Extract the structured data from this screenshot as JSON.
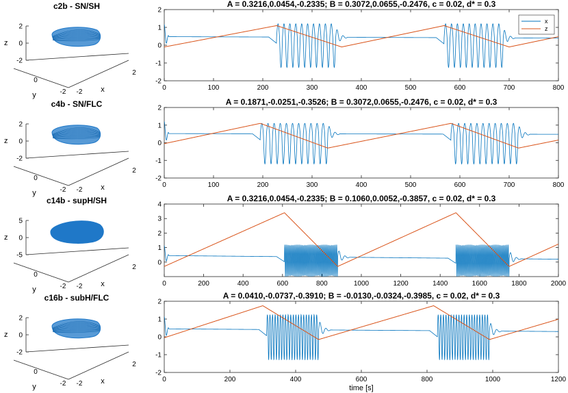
{
  "figure": {
    "xlabel": "time [s]"
  },
  "colors": {
    "x": "#0072bd",
    "z": "#d95319",
    "axis": "#262626",
    "blob": "#1f78c8"
  },
  "chart_data": [
    {
      "type": "line",
      "row": 0,
      "label_3d": "c2b - SN/SH",
      "title": "A = 0.3216,0.0454,-0.2335;  B = 0.3072,0.0655,-0.2476, c = 0.02, d* = 0.3",
      "xlim": [
        0,
        800
      ],
      "ylim": [
        -2,
        2
      ],
      "xticks": [
        0,
        100,
        200,
        300,
        400,
        500,
        600,
        700,
        800
      ],
      "yticks": [
        -2,
        -1,
        0,
        1,
        2
      ],
      "legend": [
        "x",
        "z"
      ],
      "z_wave": {
        "start": -0.1,
        "peak_t": 228,
        "peak": 1.1,
        "trough_t": 360,
        "trough": -0.1,
        "period": 340
      },
      "bursts": [
        {
          "start": 228,
          "end": 348,
          "cycles": 10,
          "hi": 1.2,
          "lo": -1.25
        },
        {
          "start": 568,
          "end": 688,
          "cycles": 10,
          "hi": 1.2,
          "lo": -1.25
        }
      ],
      "x_baseline": {
        "start": 0.48,
        "end": 0.4
      },
      "series": [
        {
          "name": "x"
        },
        {
          "name": "z"
        }
      ],
      "inset": {
        "zlim": [
          -2,
          2
        ],
        "zticks": [
          -2,
          0,
          2
        ],
        "yticks": [
          -2,
          0
        ],
        "xticks": [
          -2,
          2
        ],
        "ylabel": "y",
        "xlabel": "x",
        "zlabel": "z",
        "shape": "wire"
      }
    },
    {
      "type": "line",
      "row": 1,
      "label_3d": "c4b - SN/FLC",
      "title": "A = 0.1871,-0.0251,-0.3526;  B = 0.3072,0.0655,-0.2476, c = 0.02, d* = 0.3",
      "xlim": [
        0,
        800
      ],
      "ylim": [
        -2,
        2
      ],
      "xticks": [
        0,
        100,
        200,
        300,
        400,
        500,
        600,
        700,
        800
      ],
      "yticks": [
        -2,
        -1,
        0,
        1,
        2
      ],
      "legend": null,
      "z_wave": {
        "start": -0.05,
        "peak_t": 195,
        "peak": 1.1,
        "trough_t": 332,
        "trough": -0.3,
        "period": 387
      },
      "bursts": [
        {
          "start": 195,
          "end": 332,
          "cycles": 11,
          "hi": 1.1,
          "lo": -1.2
        },
        {
          "start": 582,
          "end": 718,
          "cycles": 11,
          "hi": 1.1,
          "lo": -1.2
        }
      ],
      "x_baseline": {
        "start": 0.52,
        "end": 0.48
      },
      "series": [
        {
          "name": "x"
        },
        {
          "name": "z"
        }
      ],
      "inset": {
        "zlim": [
          -2,
          2
        ],
        "zticks": [
          -2,
          0,
          2
        ],
        "yticks": [
          -2,
          0
        ],
        "xticks": [
          -2,
          2
        ],
        "ylabel": "y",
        "xlabel": "x",
        "zlabel": "z",
        "shape": "wire"
      }
    },
    {
      "type": "line",
      "row": 2,
      "label_3d": "c14b - supH/SH",
      "title": "A = 0.3216,0.0454,-0.2335;  B = 0.1060,0.0052,-0.3857, c = 0.02, d* = 0.3",
      "xlim": [
        0,
        2000
      ],
      "ylim": [
        -1,
        4
      ],
      "xticks": [
        0,
        200,
        400,
        600,
        800,
        1000,
        1200,
        1400,
        1600,
        1800,
        2000
      ],
      "yticks": [
        0,
        1,
        2,
        3,
        4
      ],
      "legend": null,
      "z_wave": {
        "start": -0.3,
        "peak_t": 610,
        "peak": 3.4,
        "trough_t": 880,
        "trough": -0.3,
        "period": 870
      },
      "bursts": [
        {
          "start": 610,
          "end": 880,
          "cycles": 40,
          "hi": 1.2,
          "lo": -1.0
        },
        {
          "start": 1480,
          "end": 1750,
          "cycles": 40,
          "hi": 1.2,
          "lo": -1.0
        }
      ],
      "x_baseline": {
        "start": 0.45,
        "end": 0.2
      },
      "series": [
        {
          "name": "x"
        },
        {
          "name": "z"
        }
      ],
      "inset": {
        "zlim": [
          -5,
          5
        ],
        "zticks": [
          -5,
          0,
          5
        ],
        "yticks": [
          -2,
          0
        ],
        "xticks": [
          -2,
          2
        ],
        "ylabel": "y",
        "xlabel": "x",
        "zlabel": "z",
        "shape": "solid"
      }
    },
    {
      "type": "line",
      "row": 3,
      "label_3d": "c16b - subH/FLC",
      "title": "A = 0.0410,-0.0737,-0.3910;  B = -0.0130,-0.0324,-0.3985, c = 0.02, d* = 0.3",
      "xlim": [
        0,
        1200
      ],
      "ylim": [
        -2,
        2
      ],
      "xticks": [
        0,
        200,
        400,
        600,
        800,
        1000,
        1200
      ],
      "yticks": [
        -2,
        -1,
        0,
        1,
        2
      ],
      "legend": null,
      "z_wave": {
        "start": -0.05,
        "peak_t": 300,
        "peak": 1.75,
        "trough_t": 470,
        "trough": -0.15,
        "period": 520
      },
      "bursts": [
        {
          "start": 312,
          "end": 470,
          "cycles": 20,
          "hi": 1.25,
          "lo": -1.3
        },
        {
          "start": 832,
          "end": 990,
          "cycles": 20,
          "hi": 1.25,
          "lo": -1.3
        }
      ],
      "x_baseline": {
        "start": 0.45,
        "end": 0.3
      },
      "series": [
        {
          "name": "x"
        },
        {
          "name": "z"
        }
      ],
      "inset": {
        "zlim": [
          -2,
          2
        ],
        "zticks": [
          -2,
          0,
          2
        ],
        "yticks": [
          -2,
          0
        ],
        "xticks": [
          -2,
          2
        ],
        "ylabel": "y",
        "xlabel": "x",
        "zlabel": "z",
        "shape": "wire"
      }
    }
  ]
}
